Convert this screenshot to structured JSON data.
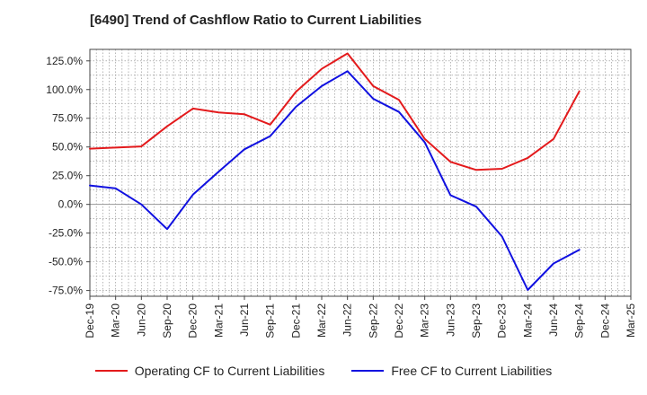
{
  "chart_data": {
    "type": "line",
    "title": "[6490]  Trend of Cashflow Ratio to Current Liabilities",
    "xlabel": "",
    "ylabel": "",
    "ylim": [
      -80,
      135
    ],
    "y_ticks": [
      "125.0%",
      "100.0%",
      "75.0%",
      "50.0%",
      "25.0%",
      "0.0%",
      "-25.0%",
      "-50.0%",
      "-75.0%"
    ],
    "y_tick_values": [
      125,
      100,
      75,
      50,
      25,
      0,
      -25,
      -50,
      -75
    ],
    "categories": [
      "Dec-19",
      "Mar-20",
      "Jun-20",
      "Sep-20",
      "Dec-20",
      "Mar-21",
      "Jun-21",
      "Sep-21",
      "Dec-21",
      "Mar-22",
      "Jun-22",
      "Sep-22",
      "Dec-22",
      "Mar-23",
      "Jun-23",
      "Sep-23",
      "Dec-23",
      "Mar-24",
      "Jun-24",
      "Sep-24",
      "Dec-24",
      "Mar-25"
    ],
    "grid": true,
    "legend_position": "bottom",
    "series": [
      {
        "name": "Operating CF to Current Liabilities",
        "color": "#e31a1c",
        "values": [
          48.5,
          49.5,
          50.5,
          68,
          83.5,
          80,
          78.5,
          69.5,
          98,
          118,
          131.5,
          103,
          91,
          57,
          37,
          30,
          31,
          40.5,
          57,
          98.5,
          null,
          null
        ]
      },
      {
        "name": "Free CF to Current Liabilities",
        "color": "#1010e0",
        "values": [
          16.5,
          14,
          0,
          -21.5,
          8.5,
          28.5,
          48,
          59.5,
          85,
          103,
          116,
          92,
          80.5,
          54,
          8,
          -2,
          -28,
          -74.5,
          -51.5,
          -39.5,
          null,
          null
        ]
      }
    ]
  }
}
